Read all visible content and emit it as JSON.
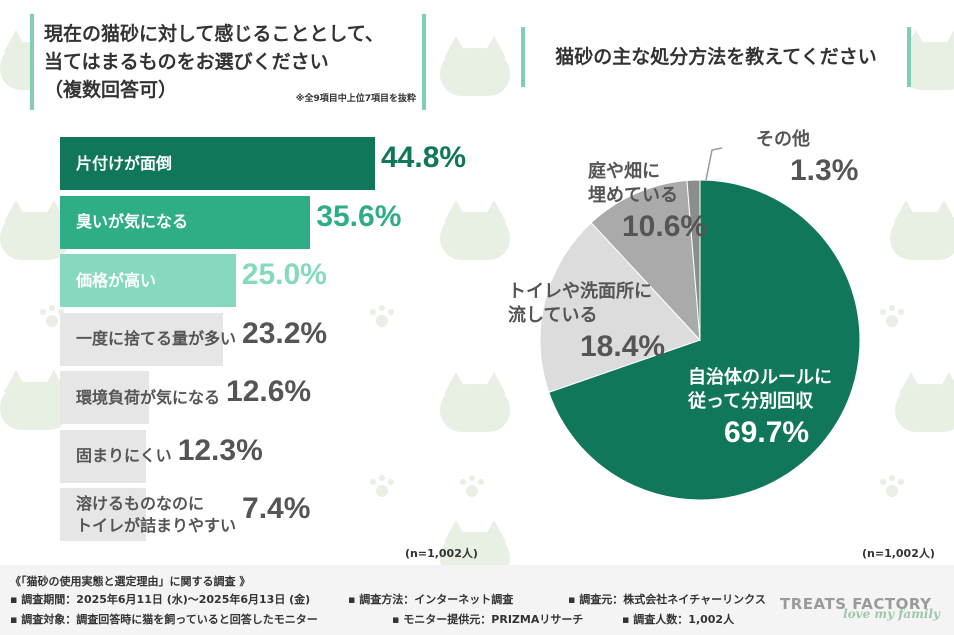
{
  "left_chart": {
    "title_line1": "現在の猫砂に対して感じることとして、",
    "title_line2": "当てはまるものをお選びください",
    "title_line3": "（複数回答可）",
    "note": "※全9項目中上位7項目を抜粋",
    "n_label": "(n=1,002人)"
  },
  "right_chart": {
    "title": "猫砂の主な処分方法を教えてください",
    "n_label": "(n=1,002人)"
  },
  "chart_data": [
    {
      "type": "bar",
      "orientation": "horizontal",
      "title": "現在の猫砂に対して感じることとして、当てはまるものをお選びください（複数回答可）",
      "categories": [
        "片付けが面倒",
        "臭いが気になる",
        "価格が高い",
        "一度に捨てる量が多い",
        "環境負荷が気になる",
        "固まりにくい",
        "溶けるものなのにトイレが詰まりやすい"
      ],
      "values": [
        44.8,
        35.6,
        25.0,
        23.2,
        12.6,
        12.3,
        7.4
      ],
      "value_labels": [
        "44.8%",
        "35.6%",
        "25.0%",
        "23.2%",
        "12.6%",
        "12.3%",
        "7.4%"
      ],
      "label_lines": [
        [
          "片付けが面倒"
        ],
        [
          "臭いが気になる"
        ],
        [
          "価格が高い"
        ],
        [
          "一度に捨てる量が多い"
        ],
        [
          "環境負荷が気になる"
        ],
        [
          "固まりにくい"
        ],
        [
          "溶けるものなのに",
          "トイレが詰まりやすい"
        ]
      ],
      "colors": [
        "#10775a",
        "#2ead87",
        "#86d8bf",
        "#e6e6e6",
        "#e6e6e6",
        "#e6e6e6",
        "#e6e6e6"
      ],
      "label_colors": [
        "#ffffff",
        "#ffffff",
        "#ffffff",
        "#555555",
        "#555555",
        "#555555",
        "#555555"
      ],
      "value_colors": [
        "#10775a",
        "#2ead87",
        "#86d8bf",
        "#555555",
        "#555555",
        "#555555",
        "#555555"
      ],
      "xlim": [
        0,
        100
      ]
    },
    {
      "type": "pie",
      "title": "猫砂の主な処分方法を教えてください",
      "categories": [
        "自治体のルールに従って分別回収",
        "トイレや洗面所に流している",
        "庭や畑に埋めている",
        "その他"
      ],
      "values": [
        69.7,
        18.4,
        10.6,
        1.3
      ],
      "value_labels": [
        "69.7%",
        "18.4%",
        "10.6%",
        "1.3%"
      ],
      "label_lines": [
        [
          "自治体のルールに",
          "従って分別回収"
        ],
        [
          "トイレや洗面所に",
          "流している"
        ],
        [
          "庭や畑に",
          "埋めている"
        ],
        [
          "その他"
        ]
      ],
      "colors": [
        "#10775a",
        "#dcdcdc",
        "#aaaaaa",
        "#8c8c8c"
      ],
      "label_colors": [
        "#ffffff",
        "#555555",
        "#555555",
        "#555555"
      ],
      "start_angle_deg": 0,
      "direction": "clockwise"
    }
  ],
  "footer": {
    "survey_title": "《「猫砂の使用実態と選定理由」に関する調査 》",
    "period": "▪ 調査期間：2025年6月11日 (水)～2025年6月13日 (金)",
    "method": "▪ 調査方法：インターネット調査",
    "org": "▪ 調査元：株式会社ネイチャーリンクス",
    "target": "▪ 調査対象：調査回答時に猫を飼っていると回答したモニター",
    "provider": "▪ モニター提供元：PRIZMAリサーチ",
    "count": "▪ 調査人数：1,002人",
    "brand_main": "TREATS FACTORY",
    "brand_sub": "love my family"
  }
}
